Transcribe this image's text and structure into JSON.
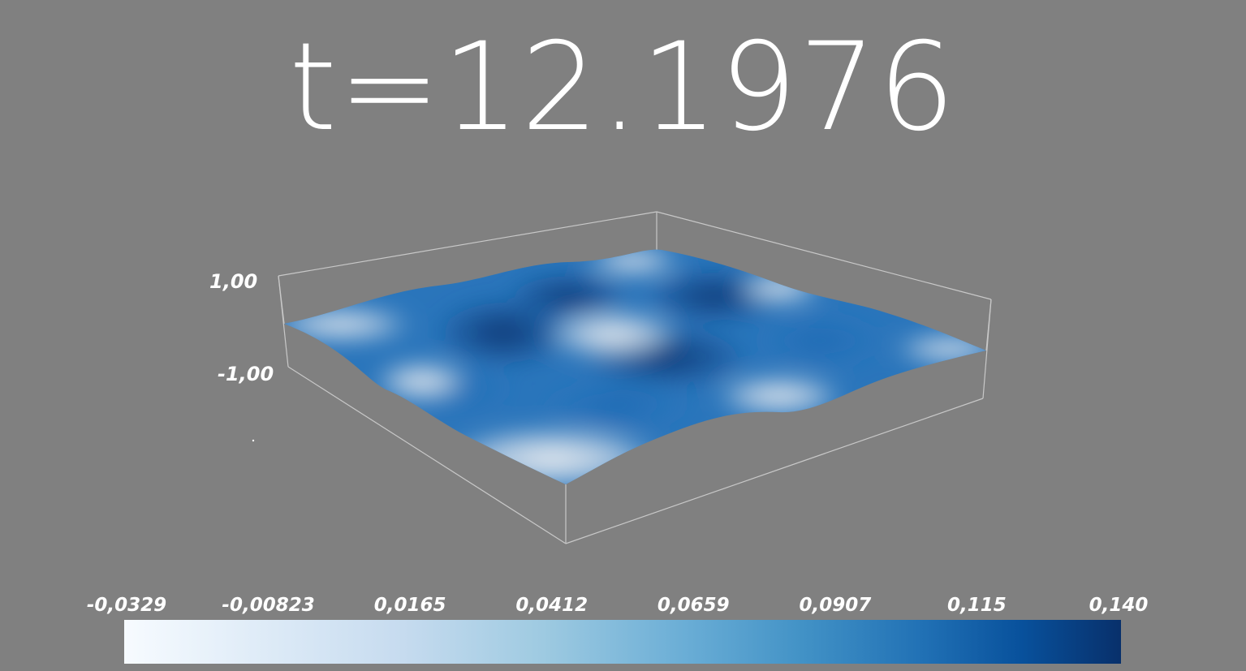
{
  "time_annotation": "t=12.1976",
  "z_axis": {
    "top_label": "1,00",
    "bottom_label": "-1,00"
  },
  "colorbar": {
    "colormap": "Blues",
    "colors": [
      "#f7fbff",
      "#deebf7",
      "#c6dbef",
      "#9ecae1",
      "#6baed6",
      "#4292c6",
      "#2171b5",
      "#08519c",
      "#08306b"
    ],
    "ticks": [
      "-0,0329",
      "-0,00823",
      "0,0165",
      "0,0412",
      "0,0659",
      "0,0907",
      "0,115",
      "0,140"
    ],
    "range": [
      -0.0329,
      0.14
    ]
  },
  "background_color": "#808080"
}
